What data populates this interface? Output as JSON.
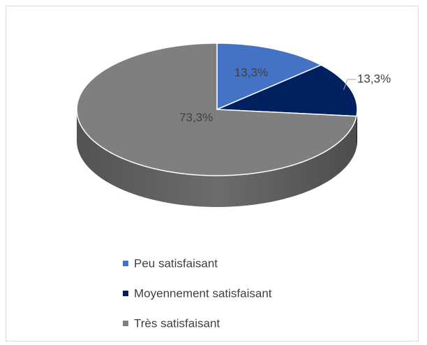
{
  "chart_data": {
    "type": "pie",
    "categories": [
      "Peu satisfaisant",
      "Moyennement satisfaisant",
      "Très satisfaisant"
    ],
    "values": [
      13.3,
      13.3,
      73.3
    ],
    "value_labels": [
      "13,3%",
      "13,3%",
      "73,3%"
    ],
    "colors": [
      "#4472c4",
      "#002060",
      "#7f7f7f"
    ],
    "legend": "bottom"
  }
}
